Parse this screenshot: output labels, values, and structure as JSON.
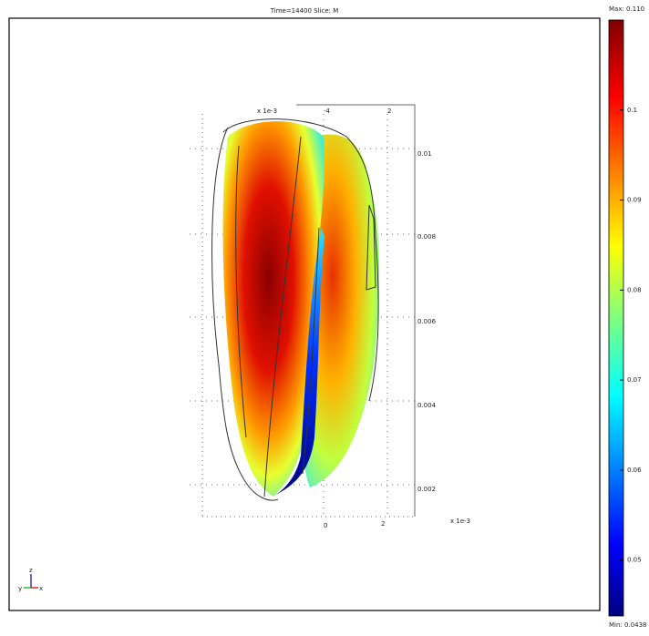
{
  "header": {
    "title": "Time=14400   Slice: M"
  },
  "colorbar": {
    "max": {
      "value": 0.11,
      "label": "Max: 0.110"
    },
    "min": {
      "value": 0.0438,
      "label": "Min: 0.0438"
    },
    "ticks": [
      0.1,
      0.09,
      0.08,
      0.07,
      0.06,
      0.05
    ]
  },
  "box_labels": {
    "top_unit": "x 1e-3",
    "top_ticks": [
      "-4",
      "2"
    ],
    "right_ticks": [
      "0.01",
      "0.008",
      "0.006",
      "0.004",
      "0.002"
    ],
    "bottom_ticks": [
      "0",
      "2"
    ],
    "bottom_unit": "x 1e-3"
  },
  "triad": {
    "z": "z",
    "y": "y",
    "x": "x"
  }
}
